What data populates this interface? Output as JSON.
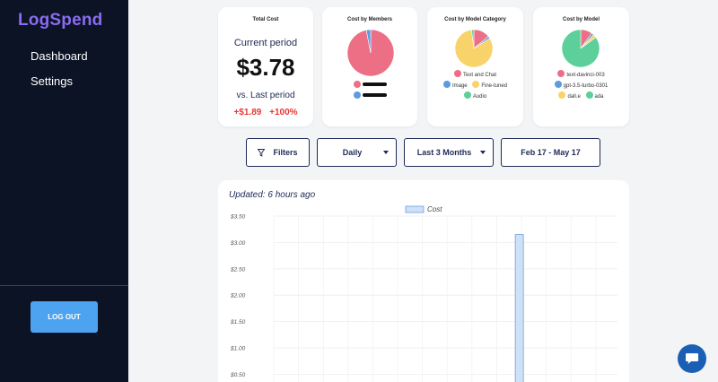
{
  "sidebar": {
    "logo": "LogSpend",
    "items": [
      {
        "label": "Dashboard"
      },
      {
        "label": "Settings"
      }
    ],
    "logout_label": "LOG OUT"
  },
  "total_cost": {
    "title": "Total Cost",
    "current_label": "Current period",
    "amount": "$3.78",
    "vs_label": "vs. Last period",
    "delta_amount": "+$1.89",
    "delta_percent": "+100%"
  },
  "members_card": {
    "title": "Cost by Members",
    "slices": [
      {
        "value": 97,
        "color": "#ec6f86"
      },
      {
        "value": 3,
        "color": "#5b9be0"
      }
    ],
    "legend": [
      {
        "label": "",
        "color": "#ec6f86"
      },
      {
        "label": "",
        "color": "#5b9be0"
      }
    ]
  },
  "category_card": {
    "title": "Cost by Model Category",
    "slices": [
      {
        "value": 14,
        "color": "#ec6f86"
      },
      {
        "value": 2,
        "color": "#5b9be0"
      },
      {
        "value": 82,
        "color": "#f8d36a"
      },
      {
        "value": 2,
        "color": "#5ccf9a"
      }
    ],
    "legend": [
      {
        "label": "Text and Chat",
        "color": "#ec6f86"
      },
      {
        "label": "Image",
        "color": "#5b9be0"
      },
      {
        "label": "Fine-tuned",
        "color": "#f8d36a"
      },
      {
        "label": "Audio",
        "color": "#5ccf9a"
      }
    ]
  },
  "model_card": {
    "title": "Cost by Model",
    "slices": [
      {
        "value": 10,
        "color": "#ec6f86"
      },
      {
        "value": 2,
        "color": "#5b9be0"
      },
      {
        "value": 3,
        "color": "#f8d36a"
      },
      {
        "value": 85,
        "color": "#5ccf9a"
      }
    ],
    "legend": [
      {
        "label": "text-davinci-003",
        "color": "#ec6f86"
      },
      {
        "label": "gpt-3.5-turbo-0301",
        "color": "#5b9be0"
      },
      {
        "label": "dall.e",
        "color": "#f8d36a"
      },
      {
        "label": "ada",
        "color": "#5ccf9a"
      }
    ]
  },
  "controls": {
    "filters_label": "Filters",
    "granularity": "Daily",
    "range": "Last 3 Months",
    "date_range": "Feb 17 - May 17"
  },
  "updated_text": "Updated: 6 hours ago",
  "chart_data": {
    "type": "bar",
    "title": "",
    "xlabel": "",
    "ylabel": "",
    "ylim": [
      0.5,
      3.5
    ],
    "yticks": [
      "$3.50",
      "$3.00",
      "$2.50",
      "$2.00",
      "$1.50",
      "$1.00",
      "$0.50"
    ],
    "grid": true,
    "legend_position": "top-center",
    "series": [
      {
        "name": "Cost",
        "color": "#cfe0f7",
        "border": "#6b9ee0",
        "values": [
          0,
          0,
          0,
          0,
          0,
          0,
          0,
          0,
          0,
          0,
          0,
          0,
          0,
          0,
          0,
          0,
          0,
          0,
          0,
          0,
          0,
          0,
          0,
          0,
          0,
          0,
          0,
          0,
          0,
          0,
          0,
          0,
          0,
          0,
          0,
          0,
          0,
          0,
          0,
          0,
          0,
          0,
          0,
          0,
          0,
          0,
          0,
          0,
          0,
          0,
          0,
          0,
          0,
          0,
          0,
          0,
          0,
          0,
          0,
          0,
          0,
          0,
          0,
          0,
          0,
          0,
          0,
          0,
          0,
          0,
          0,
          0,
          0,
          0,
          0,
          0,
          0,
          0,
          3.15,
          0,
          0,
          0,
          0,
          0,
          0,
          0,
          0,
          0,
          0,
          0,
          0,
          0,
          0,
          0,
          0,
          0,
          0,
          0,
          0,
          0,
          0,
          0,
          0,
          0,
          0,
          0,
          0,
          0,
          0,
          0,
          0
        ]
      }
    ]
  }
}
